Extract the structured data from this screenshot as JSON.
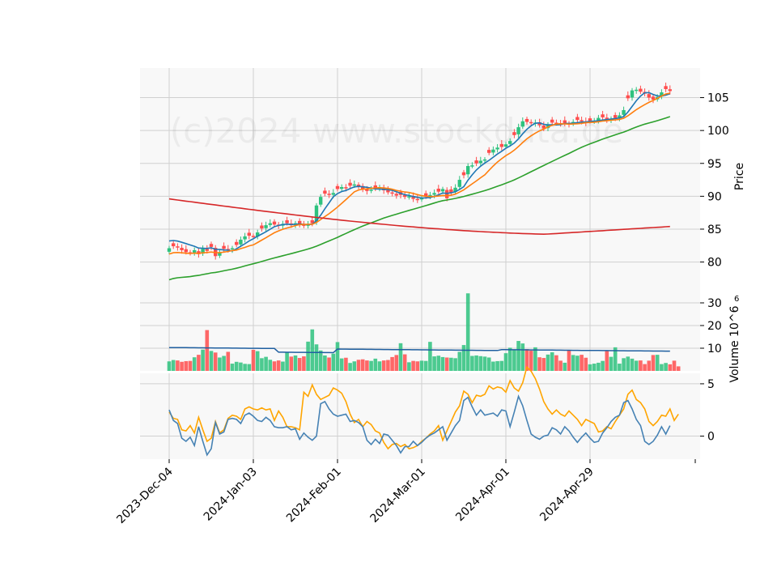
{
  "watermark": "(c)2024 www.stockdata.de",
  "colors": {
    "panel_bg": "#f8f8f8",
    "grid": "#d0d0d0",
    "up": "#2ec27e",
    "down": "#ff4d4d",
    "ma5": "#1f77b4",
    "ma10": "#ff7f0e",
    "ma30": "#2ca02c",
    "ma200": "#d62728",
    "vol_ma": "#1f5fa0",
    "ind1": "#ffa500",
    "ind2": "#4682b4"
  },
  "chart_data": {
    "type": "candlestick",
    "x_tick_labels": [
      "2023-Dec-04",
      "2024-Jan-03",
      "2024-Feb-01",
      "2024-Mar-01",
      "2024-Apr-01",
      "2024-Apr-29"
    ],
    "price_panel": {
      "ylabel": "Price",
      "ylim": [
        76.5,
        109.5
      ],
      "yticks": [
        80,
        85,
        90,
        95,
        100,
        105
      ],
      "n_bars": 120,
      "closes": [
        82.1,
        82.4,
        82.2,
        81.8,
        81.5,
        81.4,
        81.8,
        81.2,
        82.0,
        81.7,
        82.3,
        80.9,
        81.5,
        82.0,
        81.9,
        82.1,
        82.6,
        83.4,
        83.9,
        84.0,
        83.8,
        84.5,
        85.1,
        85.6,
        85.9,
        85.7,
        85.5,
        85.8,
        85.9,
        85.6,
        85.9,
        85.8,
        85.5,
        85.7,
        85.9,
        88.6,
        89.9,
        90.4,
        90.2,
        90.5,
        91.1,
        91.4,
        91.2,
        91.6,
        91.8,
        91.5,
        91.1,
        90.8,
        91.0,
        91.2,
        91.4,
        90.9,
        90.6,
        90.4,
        90.1,
        90.2,
        89.9,
        90.0,
        89.6,
        89.5,
        89.7,
        90.0,
        90.2,
        90.5,
        90.7,
        91.1,
        89.7,
        90.6,
        91.3,
        92.5,
        93.2,
        94.6,
        94.7,
        95.0,
        95.4,
        95.6,
        96.6,
        97.1,
        97.4,
        97.5,
        97.9,
        98.4,
        99.3,
        100.5,
        101.4,
        101.3,
        101.1,
        101.2,
        100.8,
        100.3,
        100.9,
        101.2,
        101.1,
        101.0,
        101.1,
        101.0,
        101.3,
        101.6,
        101.4,
        101.2,
        101.4,
        101.5,
        101.9,
        102.0,
        101.5,
        101.8,
        101.9,
        102.3,
        103.1,
        104.9,
        106.1,
        106.2,
        105.9,
        105.6,
        105.0,
        104.7,
        105.1,
        105.8,
        106.3,
        106.0
      ],
      "ma_series": [
        {
          "window": 5,
          "start": 83.2,
          "end": 105.4
        },
        {
          "window": 10,
          "start": 81.2,
          "end": 104.2
        },
        {
          "window": 30,
          "start": 77.3,
          "end": 101.0
        },
        {
          "window": 200,
          "start": 89.6,
          "end": 87.5
        }
      ]
    },
    "volume_panel": {
      "ylabel": "Volume  10^6",
      "ylim": [
        0,
        35
      ],
      "yticks": [
        10,
        20,
        30
      ],
      "values": [
        4.2,
        4.8,
        4.6,
        4.0,
        4.3,
        4.4,
        6.0,
        7.1,
        9.4,
        18.0,
        8.8,
        8.1,
        5.9,
        6.6,
        8.4,
        3.2,
        4.0,
        3.7,
        3.1,
        3.0,
        9.3,
        8.7,
        5.6,
        6.2,
        4.9,
        4.2,
        4.6,
        4.1,
        8.1,
        6.3,
        6.8,
        5.7,
        6.4,
        12.9,
        18.3,
        11.7,
        9.0,
        6.8,
        5.9,
        7.6,
        12.7,
        5.5,
        5.8,
        3.5,
        4.2,
        4.9,
        5.1,
        4.6,
        4.4,
        5.4,
        4.2,
        4.6,
        4.8,
        6.1,
        7.0,
        12.2,
        7.3,
        3.8,
        4.4,
        4.2,
        4.5,
        4.4,
        12.8,
        6.4,
        6.7,
        6.1,
        5.9,
        5.8,
        5.6,
        8.4,
        11.4,
        34.2,
        6.6,
        6.8,
        6.5,
        6.3,
        5.9,
        4.1,
        4.3,
        4.4,
        7.8,
        10.2,
        9.3,
        13.2,
        12.1,
        9.6,
        8.9,
        10.4,
        6.0,
        5.7,
        7.2,
        8.2,
        6.9,
        4.5,
        3.6,
        9.3,
        7.0,
        6.7,
        7.1,
        5.8,
        2.9,
        3.2,
        3.6,
        4.4,
        9.0,
        6.2,
        10.4,
        3.2,
        5.6,
        6.3,
        5.4,
        4.5,
        4.6,
        3.0,
        4.5,
        7.0,
        7.1,
        3.0,
        3.5,
        2.9,
        4.5,
        2.0
      ],
      "avg_start": 10.3,
      "avg_end": 8.3
    },
    "indicator_panel": {
      "ylim": [
        -2.2,
        6.0
      ],
      "yticks": [
        0,
        5
      ],
      "series": [
        {
          "name": "",
          "color_key": "ind1",
          "values": [
            2.3,
            1.7,
            1.6,
            0.6,
            0.5,
            1.0,
            0.3,
            1.8,
            0.6,
            -0.5,
            -0.2,
            1.4,
            0.3,
            0.6,
            1.7,
            2.0,
            1.9,
            1.6,
            2.6,
            2.8,
            2.6,
            2.5,
            2.7,
            2.5,
            2.6,
            1.5,
            2.4,
            1.8,
            0.9,
            0.9,
            0.8,
            0.6,
            4.2,
            3.8,
            4.9,
            4.0,
            3.5,
            3.7,
            3.9,
            4.6,
            4.4,
            4.1,
            3.3,
            2.1,
            1.3,
            1.6,
            0.9,
            1.4,
            1.1,
            0.5,
            0.3,
            -0.6,
            -1.2,
            -0.8,
            -0.7,
            -1.0,
            -0.8,
            -1.2,
            -1.1,
            -0.9,
            -0.5,
            -0.2,
            0.2,
            0.5,
            1.0,
            -0.4,
            0.5,
            1.4,
            2.3,
            2.9,
            4.3,
            4.0,
            3.2,
            3.9,
            3.8,
            4.0,
            4.8,
            4.5,
            4.7,
            4.6,
            4.2,
            5.3,
            4.6,
            4.3,
            5.1,
            6.6,
            6.2,
            5.5,
            4.5,
            3.3,
            2.6,
            2.1,
            2.5,
            2.1,
            1.9,
            2.4,
            2.0,
            1.6,
            1.0,
            1.6,
            1.4,
            1.2,
            0.4,
            0.5,
            0.9,
            0.7,
            1.4,
            2.0,
            2.6,
            4.0,
            4.4,
            3.5,
            3.2,
            2.6,
            1.4,
            1.0,
            1.4,
            2.0,
            1.9,
            2.6,
            1.5,
            2.1
          ]
        },
        {
          "name": "",
          "color_key": "ind2",
          "values": [
            2.5,
            1.5,
            1.2,
            -0.2,
            -0.5,
            -0.1,
            -0.9,
            0.9,
            -0.5,
            -1.8,
            -1.2,
            1.3,
            0.2,
            0.4,
            1.6,
            1.7,
            1.6,
            1.2,
            2.0,
            2.2,
            1.9,
            1.5,
            1.4,
            1.8,
            1.5,
            0.9,
            0.8,
            0.8,
            0.9,
            0.6,
            0.7,
            -0.3,
            0.3,
            -0.1,
            -0.4,
            0.0,
            3.1,
            3.3,
            2.6,
            2.1,
            1.9,
            2.0,
            2.1,
            1.4,
            1.5,
            1.3,
            0.9,
            -0.4,
            -0.8,
            -0.3,
            -0.7,
            0.2,
            0.1,
            -0.4,
            -0.9,
            -1.6,
            -1.0,
            -1.0,
            -0.5,
            -0.9,
            -0.6,
            -0.2,
            0.1,
            0.3,
            0.6,
            0.9,
            -0.4,
            0.3,
            1.0,
            1.5,
            3.4,
            3.7,
            2.8,
            2.0,
            2.5,
            2.0,
            2.1,
            2.2,
            1.9,
            2.5,
            2.4,
            0.9,
            2.3,
            3.8,
            2.9,
            1.5,
            0.2,
            -0.1,
            -0.3,
            0.0,
            0.1,
            0.8,
            0.6,
            0.2,
            0.9,
            0.5,
            -0.1,
            -0.6,
            -0.1,
            0.3,
            -0.2,
            -0.6,
            -0.5,
            0.3,
            0.8,
            1.4,
            1.8,
            2.0,
            3.2,
            3.4,
            2.6,
            1.6,
            1.0,
            -0.5,
            -0.8,
            -0.5,
            0.1,
            0.9,
            0.2,
            1.0
          ]
        }
      ]
    }
  }
}
